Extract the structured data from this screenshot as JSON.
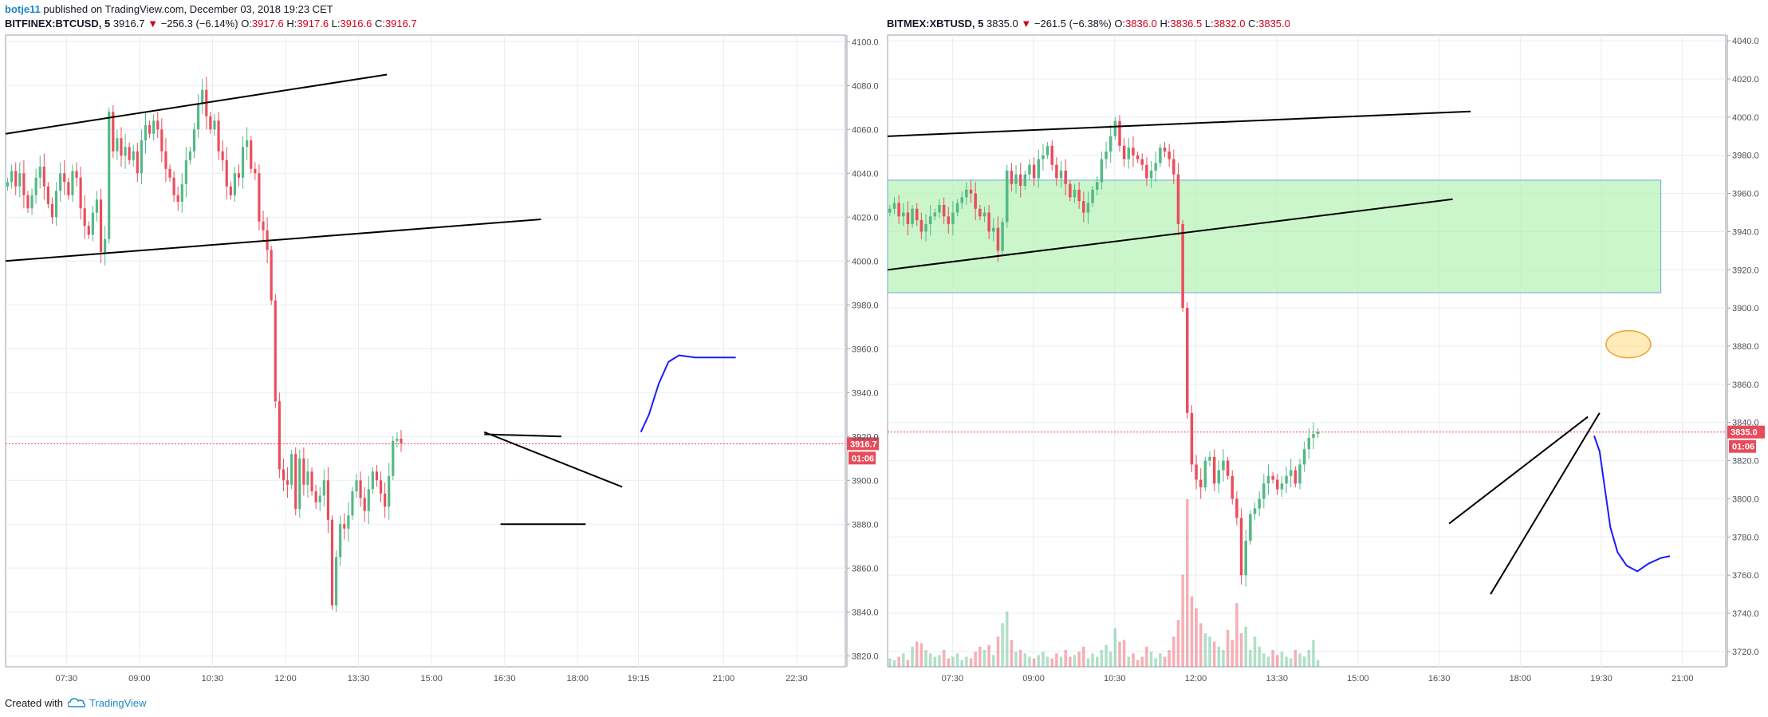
{
  "header": {
    "author": "botje11",
    "published_text": "published on TradingView.com, December 03, 2018 19:23 CET"
  },
  "footer": {
    "created_with": "Created with",
    "brand": "TradingView",
    "logo_icon": "tradingview-cloud-icon"
  },
  "colors": {
    "up": "#53b987",
    "down": "#eb4d5c",
    "grid": "#e8edf3",
    "drawing_line": "#000000",
    "projection": "#1a1aff",
    "zone_fill": "#b9f2b9",
    "zone_border": "#6fa8dc",
    "ellipse_fill": "#ffe08a",
    "ellipse_border": "#f0a030",
    "price_line": "#e84b5a",
    "price_tag": "#e84b5a"
  },
  "chart_data": [
    {
      "type": "candlestick",
      "symbol": "BITFINEX:BTCUSD",
      "interval": "5",
      "last": "3916.7",
      "change": "−256.3 (−6.14%)",
      "open": "3917.6",
      "high": "3917.6",
      "low": "3916.6",
      "close": "3916.7",
      "ylim": [
        3815,
        4103
      ],
      "y_ticks": [
        "4100.0",
        "4080.0",
        "4060.0",
        "4040.0",
        "4020.0",
        "4000.0",
        "3980.0",
        "3960.0",
        "3940.0",
        "3920.0",
        "3900.0",
        "3880.0",
        "3860.0",
        "3840.0",
        "3820.0"
      ],
      "y_tick_values": [
        4100,
        4080,
        4060,
        4040,
        4020,
        4000,
        3980,
        3960,
        3940,
        3920,
        3900,
        3880,
        3860,
        3840,
        3820
      ],
      "x_ticks": [
        "07:30",
        "09:00",
        "10:30",
        "12:00",
        "13:30",
        "15:00",
        "16:30",
        "18:00",
        "19:15",
        "21:00",
        "22:30"
      ],
      "x_tick_minutes": [
        450,
        540,
        630,
        720,
        810,
        900,
        990,
        1080,
        1155,
        1260,
        1350
      ],
      "x_range_minutes": [
        375,
        1410
      ],
      "price_tag": "3916.7",
      "countdown_tag": "01:06",
      "candles_start_minute": 375,
      "candle_step_minutes": 5,
      "closes": [
        4036,
        4041,
        4034,
        4040,
        4030,
        4024,
        4030,
        4038,
        4043,
        4034,
        4026,
        4020,
        4032,
        4040,
        4036,
        4030,
        4041,
        4038,
        4024,
        4016,
        4012,
        4022,
        4028,
        4004,
        4010,
        4068,
        4050,
        4056,
        4048,
        4052,
        4046,
        4050,
        4040,
        4055,
        4062,
        4058,
        4064,
        4060,
        4050,
        4042,
        4038,
        4030,
        4027,
        4035,
        4046,
        4050,
        4060,
        4072,
        4078,
        4066,
        4060,
        4064,
        4050,
        4046,
        4034,
        4030,
        4040,
        4038,
        4052,
        4055,
        4042,
        4040,
        4018,
        4014,
        4005,
        3982,
        3936,
        3905,
        3900,
        3898,
        3912,
        3887,
        3910,
        3898,
        3904,
        3895,
        3890,
        3893,
        3900,
        3882,
        3843,
        3865,
        3880,
        3878,
        3884,
        3895,
        3900,
        3892,
        3886,
        3896,
        3904,
        3900,
        3894,
        3888,
        3902,
        3918,
        3919,
        3917
      ]
    },
    {
      "type": "candlestick",
      "symbol": "BITMEX:XBTUSD",
      "interval": "5",
      "last": "3835.0",
      "change": "−261.5 (−6.38%)",
      "open": "3836.0",
      "high": "3836.5",
      "low": "3832.0",
      "close": "3835.0",
      "ylim": [
        3712,
        4043
      ],
      "y_ticks": [
        "4040.0",
        "4020.0",
        "4000.0",
        "3980.0",
        "3960.0",
        "3940.0",
        "3920.0",
        "3900.0",
        "3880.0",
        "3860.0",
        "3840.0",
        "3820.0",
        "3800.0",
        "3780.0",
        "3760.0",
        "3740.0",
        "3720.0"
      ],
      "y_tick_values": [
        4040,
        4020,
        4000,
        3980,
        3960,
        3940,
        3920,
        3900,
        3880,
        3860,
        3840,
        3820,
        3800,
        3780,
        3760,
        3740,
        3720
      ],
      "x_ticks": [
        "07:30",
        "09:00",
        "10:30",
        "12:00",
        "13:30",
        "15:00",
        "16:30",
        "18:00",
        "19:30",
        "21:00"
      ],
      "x_tick_minutes": [
        450,
        540,
        630,
        720,
        810,
        900,
        990,
        1080,
        1170,
        1260
      ],
      "x_range_minutes": [
        378,
        1308
      ],
      "price_tag": "3835.0",
      "countdown_tag": "01:06",
      "candles_start_minute": 378,
      "candle_step_minutes": 5,
      "closes": [
        3952,
        3955,
        3948,
        3950,
        3944,
        3952,
        3946,
        3940,
        3944,
        3948,
        3950,
        3954,
        3948,
        3944,
        3950,
        3955,
        3958,
        3962,
        3960,
        3952,
        3948,
        3950,
        3940,
        3942,
        3930,
        3945,
        3972,
        3965,
        3970,
        3964,
        3970,
        3975,
        3968,
        3978,
        3980,
        3985,
        3975,
        3968,
        3972,
        3965,
        3958,
        3962,
        3956,
        3950,
        3955,
        3962,
        3966,
        3978,
        3982,
        3990,
        3998,
        3985,
        3978,
        3984,
        3980,
        3978,
        3975,
        3968,
        3972,
        3976,
        3984,
        3982,
        3978,
        3970,
        3944,
        3900,
        3845,
        3818,
        3810,
        3806,
        3820,
        3822,
        3808,
        3815,
        3820,
        3812,
        3800,
        3790,
        3760,
        3778,
        3792,
        3795,
        3800,
        3808,
        3812,
        3810,
        3805,
        3808,
        3812,
        3815,
        3808,
        3818,
        3826,
        3832,
        3834,
        3835
      ],
      "volumes": [
        5,
        4,
        6,
        8,
        4,
        12,
        15,
        14,
        10,
        8,
        6,
        7,
        10,
        5,
        6,
        8,
        4,
        6,
        5,
        9,
        12,
        10,
        13,
        7,
        18,
        26,
        33,
        16,
        9,
        10,
        8,
        6,
        5,
        7,
        9,
        6,
        5,
        8,
        6,
        10,
        6,
        7,
        9,
        12,
        5,
        8,
        6,
        10,
        13,
        9,
        23,
        15,
        16,
        6,
        8,
        4,
        6,
        12,
        9,
        5,
        8,
        6,
        10,
        18,
        28,
        55,
        100,
        42,
        35,
        26,
        20,
        18,
        15,
        12,
        10,
        22,
        16,
        38,
        20,
        24,
        10,
        18,
        12,
        8,
        6,
        10,
        7,
        9,
        6,
        5,
        10,
        8,
        6,
        10,
        16,
        4
      ],
      "volume_max": 100
    }
  ]
}
